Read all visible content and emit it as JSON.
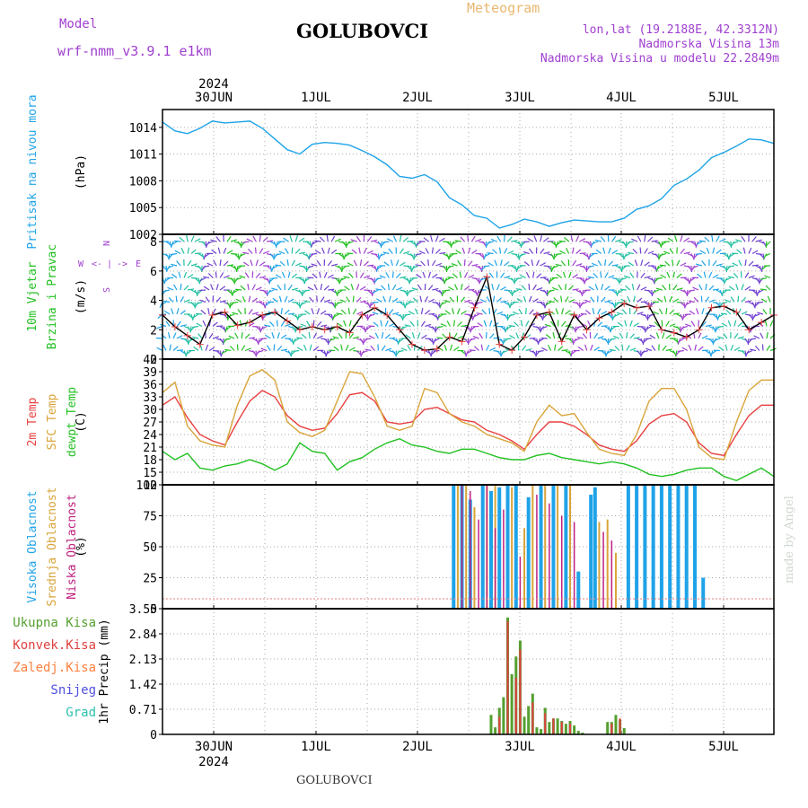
{
  "header": {
    "model_label": "Model",
    "model_name": "wrf-nmm_v3.9.1 e1km",
    "station": "GOLUBOVCI",
    "title": "Meteogram",
    "lonlat": "lon,lat (19.2188E, 42.3312N)",
    "altitude": "Nadmorska Visina 13m",
    "model_altitude": "Nadmorska Visina u modelu 22.2849m",
    "footer_station": "GOLUBOVCI",
    "credit": "made by Angel"
  },
  "colors": {
    "pressure": "#1fa3e8",
    "wind_label": "#22c022",
    "wind_dir_label": "#a040d0",
    "temp2m": "#e84040",
    "sfc_temp": "#d9a43a",
    "dewpt": "#22c022",
    "cloud_high": "#1fa3e8",
    "cloud_mid": "#d9a43a",
    "cloud_low": "#c02080",
    "precip_total": "#55a030",
    "precip_conv": "#e04040",
    "precip_frozen": "#ff8040",
    "precip_snow": "#5050e0",
    "precip_graupel": "#30c0b0",
    "grid": "#aaaaaa"
  },
  "time_axis": {
    "top_year": "2024",
    "bottom_year": "2024",
    "days": [
      "30JUN",
      "1JUL",
      "2JUL",
      "3JUL",
      "4JUL",
      "5JUL"
    ]
  },
  "chart_data": [
    {
      "type": "line",
      "ylabel_lines": [
        "Pritisak na nivou mora",
        "(hPa)"
      ],
      "ylim": [
        1002,
        1016
      ],
      "yticks": [
        "1014",
        "1011",
        "1008",
        "1005",
        "1002"
      ],
      "x_hours_from": "2024-06-29T14:00",
      "series": [
        {
          "x": [
            0,
            3,
            6,
            9,
            12,
            15,
            18,
            21,
            24,
            27,
            30,
            33,
            36,
            39,
            42,
            45,
            48,
            51,
            54,
            57,
            60,
            63,
            66,
            69,
            72,
            75,
            78,
            81,
            84,
            87,
            90,
            93,
            96,
            99,
            102,
            105,
            108,
            111,
            114,
            117,
            120,
            123,
            126,
            129,
            132,
            135,
            138,
            141,
            144,
            147
          ],
          "values": [
            1014.6,
            1013.6,
            1013.3,
            1013.9,
            1014.7,
            1014.5,
            1014.6,
            1014.7,
            1013.9,
            1012.7,
            1011.5,
            1011.0,
            1012.1,
            1012.3,
            1012.2,
            1012.0,
            1011.4,
            1010.7,
            1009.8,
            1008.5,
            1008.3,
            1008.7,
            1007.9,
            1006.1,
            1005.3,
            1004.1,
            1003.8,
            1002.7,
            1003.1,
            1003.7,
            1003.4,
            1002.9,
            1003.3,
            1003.6,
            1003.5,
            1003.4,
            1003.4,
            1003.8,
            1004.8,
            1005.2,
            1006.0,
            1007.5,
            1008.2,
            1009.2,
            1010.6,
            1011.2,
            1011.9,
            1012.7,
            1012.6,
            1012.2
          ]
        }
      ]
    },
    {
      "type": "line",
      "ylabel_lines": [
        "10m Vjetar",
        "Brzina i Pravac",
        "(m/s)"
      ],
      "compass": [
        "N",
        "W",
        "E",
        "S",
        "<-",
        "->",
        "|"
      ],
      "ylim": [
        0,
        8.5
      ],
      "yticks": [
        "8",
        "6",
        "4",
        "2",
        "0"
      ],
      "series": [
        {
          "name": "10m Vjetar",
          "x": [
            0,
            3,
            6,
            9,
            12,
            15,
            18,
            21,
            24,
            27,
            30,
            33,
            36,
            39,
            42,
            45,
            48,
            51,
            54,
            57,
            60,
            63,
            66,
            69,
            72,
            75,
            78,
            81,
            84,
            87,
            90,
            93,
            96,
            99,
            102,
            105,
            108,
            111,
            114,
            117,
            120,
            123,
            126,
            129,
            132,
            135,
            138,
            141,
            144,
            147
          ],
          "values": [
            3.0,
            2.2,
            1.6,
            1.0,
            3.0,
            3.2,
            2.3,
            2.5,
            3.0,
            3.2,
            2.6,
            2.0,
            2.2,
            2.0,
            2.2,
            1.8,
            3.0,
            3.5,
            3.0,
            2.0,
            1.0,
            0.6,
            0.7,
            1.5,
            1.2,
            3.5,
            5.6,
            1.0,
            0.6,
            1.5,
            3.0,
            3.2,
            1.2,
            3.0,
            2.0,
            2.8,
            3.2,
            3.8,
            3.5,
            3.6,
            2.0,
            1.8,
            1.5,
            2.0,
            3.5,
            3.6,
            3.2,
            2.0,
            2.5,
            3.0
          ]
        }
      ]
    },
    {
      "type": "line",
      "ylabel_lines": [
        "2m Temp",
        "SFC Temp",
        "dewpt Temp",
        "(C)"
      ],
      "ylim": [
        12,
        42
      ],
      "yticks": [
        "42",
        "39",
        "36",
        "33",
        "30",
        "27",
        "24",
        "21",
        "18",
        "15",
        "12"
      ],
      "series": [
        {
          "name": "2m Temp",
          "x": [
            0,
            3,
            6,
            9,
            12,
            15,
            18,
            21,
            24,
            27,
            30,
            33,
            36,
            39,
            42,
            45,
            48,
            51,
            54,
            57,
            60,
            63,
            66,
            69,
            72,
            75,
            78,
            81,
            84,
            87,
            90,
            93,
            96,
            99,
            102,
            105,
            108,
            111,
            114,
            117,
            120,
            123,
            126,
            129,
            132,
            135,
            138,
            141,
            144,
            147
          ],
          "values": [
            31.0,
            33.0,
            28.0,
            24.0,
            22.5,
            21.5,
            27.0,
            32.0,
            34.5,
            33.0,
            28.5,
            26.0,
            25.0,
            25.5,
            29.0,
            33.5,
            34.0,
            32.0,
            27.0,
            26.5,
            27.0,
            30.0,
            30.5,
            29.0,
            27.5,
            27.0,
            25.0,
            24.0,
            22.5,
            20.5,
            24.0,
            27.0,
            27.0,
            26.0,
            24.0,
            21.5,
            20.5,
            20.0,
            22.5,
            26.5,
            28.5,
            29.0,
            27.0,
            22.0,
            19.5,
            19.0,
            24.0,
            28.5,
            31.0,
            31.0
          ]
        },
        {
          "name": "SFC Temp",
          "x": [
            0,
            3,
            6,
            9,
            12,
            15,
            18,
            21,
            24,
            27,
            30,
            33,
            36,
            39,
            42,
            45,
            48,
            51,
            54,
            57,
            60,
            63,
            66,
            69,
            72,
            75,
            78,
            81,
            84,
            87,
            90,
            93,
            96,
            99,
            102,
            105,
            108,
            111,
            114,
            117,
            120,
            123,
            126,
            129,
            132,
            135,
            138,
            141,
            144,
            147
          ],
          "values": [
            34.0,
            36.5,
            26.0,
            22.5,
            21.5,
            21.0,
            31.0,
            38.0,
            39.5,
            37.0,
            27.0,
            24.5,
            23.5,
            25.0,
            32.0,
            39.0,
            38.5,
            33.0,
            26.0,
            25.0,
            26.0,
            35.0,
            34.0,
            29.0,
            27.0,
            26.0,
            24.0,
            23.0,
            22.0,
            20.0,
            27.0,
            31.0,
            28.5,
            29.0,
            24.5,
            20.5,
            19.5,
            19.0,
            24.0,
            32.0,
            35.0,
            35.0,
            30.0,
            21.0,
            18.5,
            18.0,
            27.0,
            34.5,
            37.0,
            37.0
          ]
        },
        {
          "name": "dewpt Temp",
          "x": [
            0,
            3,
            6,
            9,
            12,
            15,
            18,
            21,
            24,
            27,
            30,
            33,
            36,
            39,
            42,
            45,
            48,
            51,
            54,
            57,
            60,
            63,
            66,
            69,
            72,
            75,
            78,
            81,
            84,
            87,
            90,
            93,
            96,
            99,
            102,
            105,
            108,
            111,
            114,
            117,
            120,
            123,
            126,
            129,
            132,
            135,
            138,
            141,
            144,
            147
          ],
          "values": [
            20.0,
            18.0,
            19.5,
            16.0,
            15.5,
            16.5,
            17.0,
            18.0,
            17.0,
            15.5,
            17.0,
            22.0,
            20.0,
            19.5,
            15.5,
            17.5,
            18.5,
            20.5,
            22.0,
            23.0,
            21.5,
            21.0,
            20.0,
            19.5,
            20.5,
            20.5,
            19.5,
            18.5,
            18.0,
            18.0,
            19.0,
            19.5,
            18.5,
            18.0,
            17.5,
            17.0,
            17.5,
            17.0,
            16.0,
            14.5,
            14.0,
            14.5,
            15.5,
            16.0,
            16.0,
            14.0,
            13.0,
            14.5,
            16.0,
            14.0
          ]
        }
      ]
    },
    {
      "type": "bar",
      "ylabel_lines": [
        "Visoka Oblacnost",
        "Srednja Oblacnost",
        "Niska Oblacnost",
        "(%)"
      ],
      "ylim": [
        0,
        100
      ],
      "yticks": [
        "100",
        "75",
        "50",
        "25",
        "0"
      ],
      "series": [
        {
          "name": "Visoka Oblacnost",
          "x": [
            70,
            72,
            74,
            77,
            79,
            81,
            83,
            85,
            88,
            91,
            94,
            97,
            100,
            103,
            104,
            112,
            114,
            116,
            118,
            120,
            122,
            124,
            126,
            128,
            130
          ],
          "values": [
            100,
            100,
            88,
            100,
            95,
            98,
            100,
            100,
            90,
            100,
            100,
            100,
            30,
            92,
            98,
            100,
            100,
            100,
            100,
            100,
            100,
            100,
            100,
            100,
            25
          ]
        },
        {
          "name": "Srednja Oblacnost",
          "x": [
            71,
            73,
            75,
            78,
            80,
            84,
            87,
            89,
            92,
            95,
            98,
            105,
            107,
            109
          ],
          "values": [
            100,
            100,
            82,
            100,
            100,
            98,
            65,
            100,
            100,
            100,
            100,
            70,
            72,
            45
          ]
        },
        {
          "name": "Niska Oblacnost",
          "x": [
            72,
            74,
            76,
            78,
            80,
            82,
            86,
            90,
            93,
            96,
            99,
            106,
            108
          ],
          "values": [
            100,
            95,
            72,
            100,
            65,
            80,
            42,
            92,
            85,
            75,
            70,
            62,
            55
          ]
        }
      ]
    },
    {
      "type": "bar",
      "ylabel_lines": [
        "Ukupna Kisa",
        "Konvek.Kisa",
        "Zaledj.Kisa",
        "Snijeg",
        "Grad",
        "1hr Precip (mm)"
      ],
      "ylim": [
        0,
        3.55
      ],
      "yticks": [
        "3.55",
        "2.84",
        "2.13",
        "1.42",
        "0.71",
        "0"
      ],
      "series": [
        {
          "name": "Ukupna Kisa",
          "x": [
            79,
            80,
            81,
            82,
            83,
            84,
            85,
            86,
            87,
            88,
            89,
            90,
            91,
            92,
            93,
            94,
            95,
            96,
            97,
            98,
            99,
            100,
            101,
            107,
            108,
            109,
            110,
            111
          ],
          "values": [
            0.55,
            0.2,
            0.75,
            1.05,
            3.3,
            1.7,
            2.2,
            2.65,
            0.5,
            0.8,
            1.15,
            0.2,
            0.15,
            0.75,
            0.35,
            0.45,
            0.45,
            0.38,
            0.3,
            0.38,
            0.25,
            0.1,
            0.05,
            0.35,
            0.35,
            0.55,
            0.42,
            0.18
          ]
        },
        {
          "name": "Konvek.Kisa",
          "x": [
            81,
            83,
            85,
            86,
            89,
            92,
            94,
            96,
            98,
            108,
            110
          ],
          "values": [
            0.5,
            3.2,
            1.6,
            2.4,
            0.9,
            0.6,
            0.45,
            0.35,
            0.3,
            0.3,
            0.45
          ]
        }
      ]
    }
  ]
}
